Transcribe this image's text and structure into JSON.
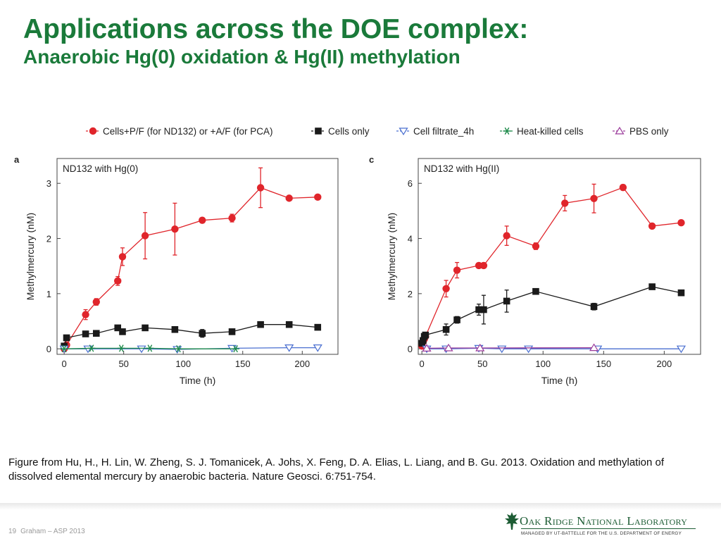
{
  "slide": {
    "title": "Applications across the DOE complex:",
    "subtitle": "Anaerobic Hg(0) oxidation & Hg(II) methylation",
    "caption": "Figure from Hu, H., H. Lin, W. Zheng, S. J. Tomanicek, A. Johs, X. Feng, D. A. Elias, L. Liang, and B. Gu. 2013. Oxidation and methylation of dissolved elemental mercury by anaerobic bacteria. Nature Geosci. 6:751-754.",
    "footer": {
      "page_number": "19",
      "presenter": "Graham – ASP 2013"
    },
    "logo": {
      "name": "Oak Ridge National Laboratory",
      "tagline": "MANAGED BY UT-BATTELLE FOR THE U.S. DEPARTMENT OF ENERGY"
    }
  },
  "chart_data": [
    {
      "type": "line",
      "panel_label": "a",
      "annotation": "ND132 with Hg(0)",
      "xlabel": "Time (h)",
      "ylabel": "Methylmercury (nM)",
      "xlim": [
        -6,
        230
      ],
      "ylim": [
        -0.1,
        3.45
      ],
      "xticks": [
        0,
        50,
        100,
        150,
        200
      ],
      "yticks": [
        0,
        1,
        2,
        3
      ],
      "grid": false,
      "legend_position": "top",
      "series": [
        {
          "name": "Cells+P/F (for ND132) or +A/F (for PCA)",
          "color": "#e0252b",
          "marker": "circle",
          "x": [
            0,
            2,
            18,
            27,
            45,
            49,
            68,
            93,
            116,
            141,
            165,
            189,
            213
          ],
          "y": [
            0.0,
            0.07,
            0.62,
            0.85,
            1.23,
            1.67,
            2.05,
            2.17,
            2.33,
            2.37,
            2.92,
            2.73,
            2.75
          ],
          "err": [
            0,
            0.05,
            0.09,
            0.06,
            0.08,
            0.16,
            0.42,
            0.47,
            0.03,
            0.07,
            0.36,
            0.02,
            0.02
          ]
        },
        {
          "name": "Cells only",
          "color": "#1a1a1a",
          "marker": "square",
          "x": [
            0,
            2,
            18,
            27,
            45,
            49,
            68,
            93,
            116,
            141,
            165,
            189,
            213
          ],
          "y": [
            0.05,
            0.2,
            0.27,
            0.28,
            0.38,
            0.31,
            0.38,
            0.35,
            0.28,
            0.31,
            0.44,
            0.44,
            0.39
          ],
          "err": [
            0.02,
            0.03,
            0.04,
            0.03,
            0.03,
            0.03,
            0.03,
            0.02,
            0.07,
            0.02,
            0.04,
            0.02,
            0.02
          ]
        },
        {
          "name": "Cell filtrate_4h",
          "color": "#4a6fd0",
          "marker": "triangle-down",
          "x": [
            0,
            20,
            65,
            95,
            141,
            189,
            213
          ],
          "y": [
            0.0,
            0.0,
            0.0,
            -0.01,
            0.01,
            0.02,
            0.02
          ]
        },
        {
          "name": "Heat-killed cells",
          "color": "#1d8a4a",
          "marker": "asterisk",
          "x": [
            0,
            23,
            48,
            72,
            96,
            144
          ],
          "y": [
            0.0,
            0.01,
            0.01,
            0.01,
            0.0,
            0.0
          ]
        },
        {
          "name": "PBS only",
          "color": "#9a3a9a",
          "marker": "triangle-up",
          "x": [],
          "y": []
        }
      ]
    },
    {
      "type": "line",
      "panel_label": "c",
      "annotation": "ND132 with Hg(II)",
      "xlabel": "Time (h)",
      "ylabel": "Methylmercury (nM)",
      "xlim": [
        -3,
        230
      ],
      "ylim": [
        -0.2,
        6.9
      ],
      "xticks": [
        0,
        50,
        100,
        150,
        200
      ],
      "yticks": [
        0,
        2,
        4,
        6
      ],
      "grid": false,
      "legend_position": "top",
      "series": [
        {
          "name": "Cells+P/F (for ND132) or +A/F (for PCA)",
          "color": "#e0252b",
          "marker": "circle",
          "x": [
            0,
            1,
            2,
            3,
            20,
            29,
            47,
            51,
            70,
            94,
            118,
            142,
            166,
            190,
            214
          ],
          "y": [
            0.1,
            0.25,
            0.35,
            0.45,
            2.18,
            2.85,
            3.02,
            3.02,
            4.1,
            3.72,
            5.28,
            5.45,
            5.85,
            4.45,
            4.57
          ],
          "err": [
            0.02,
            0.05,
            0.05,
            0.05,
            0.3,
            0.28,
            0.05,
            0.05,
            0.35,
            0.12,
            0.28,
            0.52,
            0.1,
            0.05,
            0.05
          ]
        },
        {
          "name": "Cells only",
          "color": "#1a1a1a",
          "marker": "square",
          "x": [
            0,
            1,
            2,
            3,
            20,
            29,
            47,
            51,
            70,
            94,
            142,
            190,
            214
          ],
          "y": [
            0.2,
            0.3,
            0.45,
            0.5,
            0.7,
            1.05,
            1.42,
            1.42,
            1.73,
            2.08,
            1.53,
            2.25,
            2.03
          ],
          "err": [
            0.05,
            0.05,
            0.05,
            0.05,
            0.2,
            0.12,
            0.2,
            0.52,
            0.4,
            0.08,
            0.12,
            0.05,
            0.05
          ]
        },
        {
          "name": "Cell filtrate_4h",
          "color": "#4a6fd0",
          "marker": "triangle-down",
          "x": [
            4,
            20,
            47,
            66,
            88,
            145,
            214
          ],
          "y": [
            0.0,
            0.0,
            0.02,
            0.0,
            0.0,
            0.0,
            0.0
          ]
        },
        {
          "name": "Heat-killed cells",
          "color": "#1d8a4a",
          "marker": "asterisk",
          "x": [],
          "y": []
        },
        {
          "name": "PBS only",
          "color": "#9a3a9a",
          "marker": "triangle-up",
          "x": [
            4,
            22,
            48,
            142
          ],
          "y": [
            0.02,
            0.03,
            0.03,
            0.04
          ]
        }
      ]
    }
  ]
}
